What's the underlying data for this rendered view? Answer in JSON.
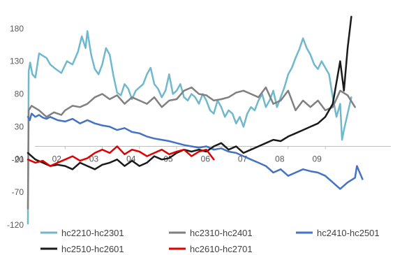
{
  "chart_data": {
    "type": "line",
    "title": "",
    "xlabel": "",
    "ylabel": "",
    "ylim": [
      -120,
      200
    ],
    "yticks": [
      180,
      130,
      80,
      30,
      -20,
      -70,
      -120
    ],
    "xlim": [
      1,
      10
    ],
    "xticks": [
      {
        "x": 1,
        "label": "01"
      },
      {
        "x": 2,
        "label": "02"
      },
      {
        "x": 3,
        "label": "03"
      },
      {
        "x": 4,
        "label": "04"
      },
      {
        "x": 5,
        "label": "05"
      },
      {
        "x": 6,
        "label": "06"
      },
      {
        "x": 7,
        "label": "07"
      },
      {
        "x": 8,
        "label": "08"
      },
      {
        "x": 9,
        "label": "09"
      }
    ],
    "grid": false,
    "legend": "bottom",
    "series": [
      {
        "name": "hc2210-hc2301",
        "color": "#70b8cc",
        "x": [
          1.0,
          1.02,
          1.06,
          1.12,
          1.2,
          1.3,
          1.5,
          1.6,
          1.75,
          1.9,
          2.05,
          2.2,
          2.35,
          2.45,
          2.55,
          2.6,
          2.7,
          2.8,
          2.9,
          3.0,
          3.1,
          3.2,
          3.3,
          3.4,
          3.5,
          3.6,
          3.7,
          3.8,
          3.9,
          4.0,
          4.1,
          4.2,
          4.3,
          4.4,
          4.5,
          4.6,
          4.7,
          4.8,
          4.9,
          5.0,
          5.1,
          5.2,
          5.3,
          5.4,
          5.5,
          5.6,
          5.7,
          5.8,
          5.9,
          6.0,
          6.1,
          6.2,
          6.3,
          6.4,
          6.5,
          6.6,
          6.7,
          6.8,
          6.9,
          7.0,
          7.1,
          7.2,
          7.3,
          7.4,
          7.5,
          7.6,
          7.7,
          7.8,
          7.9,
          8.0,
          8.1,
          8.2,
          8.3,
          8.4,
          8.5,
          8.6,
          8.7,
          8.8,
          8.9,
          9.0,
          9.1,
          9.2,
          9.3,
          9.4,
          9.45,
          9.5,
          9.6,
          9.7
        ],
        "y": [
          -118,
          115,
          128,
          110,
          105,
          142,
          135,
          125,
          118,
          112,
          130,
          125,
          145,
          168,
          150,
          176,
          140,
          118,
          110,
          125,
          150,
          140,
          108,
          82,
          78,
          95,
          88,
          72,
          85,
          90,
          95,
          110,
          120,
          95,
          88,
          75,
          85,
          110,
          80,
          85,
          95,
          75,
          70,
          80,
          75,
          65,
          80,
          70,
          55,
          50,
          70,
          60,
          45,
          55,
          50,
          35,
          45,
          30,
          50,
          60,
          55,
          70,
          80,
          60,
          70,
          85,
          60,
          75,
          90,
          110,
          120,
          135,
          148,
          165,
          150,
          140,
          125,
          118,
          130,
          120,
          110,
          75,
          45,
          65,
          10,
          25,
          50,
          75
        ]
      },
      {
        "name": "hc2310-hc2401",
        "color": "#808080",
        "x": [
          1.0,
          1.02,
          1.1,
          1.3,
          1.5,
          1.7,
          1.9,
          2.0,
          2.2,
          2.4,
          2.6,
          2.8,
          3.0,
          3.2,
          3.4,
          3.6,
          3.8,
          4.0,
          4.2,
          4.4,
          4.6,
          4.8,
          5.0,
          5.2,
          5.4,
          5.6,
          5.8,
          6.0,
          6.2,
          6.4,
          6.6,
          6.8,
          7.0,
          7.2,
          7.4,
          7.6,
          7.8,
          8.0,
          8.2,
          8.4,
          8.6,
          8.8,
          9.0,
          9.2,
          9.4,
          9.6,
          9.8
        ],
        "y": [
          -95,
          55,
          62,
          55,
          45,
          52,
          48,
          55,
          62,
          60,
          65,
          75,
          80,
          72,
          78,
          65,
          75,
          70,
          65,
          75,
          60,
          70,
          72,
          85,
          90,
          80,
          78,
          70,
          72,
          75,
          82,
          85,
          80,
          75,
          90,
          65,
          70,
          85,
          55,
          70,
          60,
          70,
          55,
          60,
          85,
          78,
          60
        ]
      },
      {
        "name": "hc2410-hc2501",
        "color": "#4472c4",
        "x": [
          1.0,
          1.05,
          1.1,
          1.2,
          1.3,
          1.4,
          1.5,
          1.6,
          1.8,
          2.0,
          2.2,
          2.4,
          2.6,
          2.8,
          3.0,
          3.2,
          3.4,
          3.6,
          3.8,
          4.0,
          4.2,
          4.4,
          4.6,
          4.8,
          5.0,
          5.2,
          5.4,
          5.6,
          5.8,
          6.0,
          6.2,
          6.4,
          6.6,
          6.8,
          7.0,
          7.2,
          7.4,
          7.6,
          7.8,
          8.0,
          8.2,
          8.4,
          8.6,
          8.8,
          9.0,
          9.2,
          9.4,
          9.6,
          9.8,
          9.85,
          10.0
        ],
        "y": [
          45,
          40,
          50,
          45,
          48,
          44,
          42,
          45,
          40,
          38,
          42,
          35,
          40,
          35,
          32,
          30,
          25,
          28,
          22,
          20,
          15,
          12,
          10,
          8,
          5,
          2,
          0,
          -2,
          0,
          -5,
          -3,
          -8,
          -10,
          -15,
          -20,
          -25,
          -30,
          -40,
          -35,
          -45,
          -40,
          -35,
          -38,
          -40,
          -45,
          -55,
          -65,
          -55,
          -48,
          -30,
          -50
        ]
      },
      {
        "name": "hc2510-hc2601",
        "color": "#1a1a1a",
        "x": [
          1.0,
          1.1,
          1.2,
          1.4,
          1.6,
          1.8,
          2.0,
          2.2,
          2.4,
          2.6,
          2.8,
          3.0,
          3.2,
          3.4,
          3.6,
          3.8,
          4.0,
          4.2,
          4.4,
          4.6,
          4.8,
          5.0,
          5.2,
          5.4,
          5.6,
          5.8,
          6.0,
          6.2,
          6.4,
          6.6,
          6.8,
          7.0,
          7.2,
          7.4,
          7.6,
          7.8,
          8.0,
          8.2,
          8.4,
          8.6,
          8.8,
          9.0,
          9.2,
          9.4,
          9.5,
          9.6,
          9.7
        ],
        "y": [
          -10,
          -15,
          -20,
          -25,
          -30,
          -28,
          -30,
          -35,
          -25,
          -30,
          -35,
          -28,
          -25,
          -20,
          -30,
          -22,
          -30,
          -25,
          -15,
          -20,
          -18,
          -10,
          -5,
          -8,
          -5,
          -8,
          0,
          5,
          -5,
          0,
          -10,
          -5,
          0,
          5,
          10,
          8,
          15,
          20,
          25,
          30,
          35,
          45,
          65,
          130,
          85,
          150,
          198
        ]
      },
      {
        "name": "hc2610-hc2701",
        "color": "#e30000",
        "x": [
          1.0,
          1.2,
          1.4,
          1.6,
          1.8,
          2.0,
          2.2,
          2.4,
          2.6,
          2.8,
          3.0,
          3.2,
          3.4,
          3.6,
          3.8,
          4.0,
          4.2,
          4.4,
          4.6,
          4.8,
          5.0,
          5.2,
          5.4,
          5.6,
          5.8,
          6.0
        ],
        "y": [
          -20,
          -25,
          -22,
          -30,
          -25,
          -20,
          -15,
          -22,
          -18,
          -10,
          -5,
          -10,
          0,
          -12,
          -5,
          -8,
          -15,
          -10,
          -5,
          -12,
          -8,
          -5,
          -15,
          -8,
          -5,
          -20
        ]
      }
    ]
  }
}
